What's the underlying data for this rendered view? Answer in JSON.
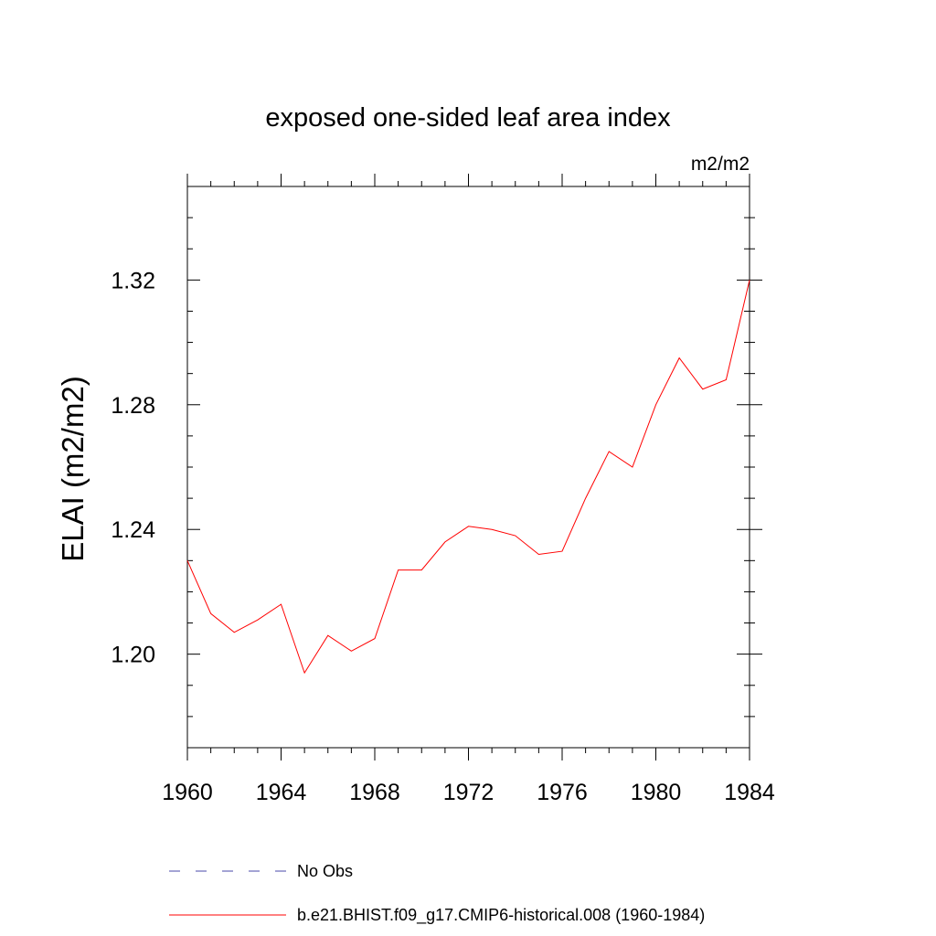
{
  "chart_data": {
    "type": "line",
    "title": "exposed one-sided leaf area index",
    "units_label": "m2/m2",
    "ylabel": "ELAI  (m2/m2)",
    "xlabel": "",
    "xlim": [
      1960,
      1984
    ],
    "ylim": [
      1.17,
      1.35
    ],
    "x_ticks": [
      1960,
      1964,
      1968,
      1972,
      1976,
      1980,
      1984
    ],
    "x_tick_labels": [
      "1960",
      "1964",
      "1968",
      "1972",
      "1976",
      "1980",
      "1984"
    ],
    "y_ticks": [
      1.2,
      1.24,
      1.28,
      1.32
    ],
    "y_tick_labels": [
      "1.20",
      "1.24",
      "1.28",
      "1.32"
    ],
    "grid": false,
    "legend_placement": "bottom",
    "series": [
      {
        "name": "b.e21.BHIST.f09_g17.CMIP6-historical.008 (1960-1984)",
        "color": "#ff0000",
        "style": "solid",
        "x": [
          1960,
          1961,
          1962,
          1963,
          1964,
          1965,
          1966,
          1967,
          1968,
          1969,
          1970,
          1971,
          1972,
          1973,
          1974,
          1975,
          1976,
          1977,
          1978,
          1979,
          1980,
          1981,
          1982,
          1983,
          1984
        ],
        "y": [
          1.23,
          1.213,
          1.207,
          1.211,
          1.216,
          1.194,
          1.206,
          1.201,
          1.205,
          1.227,
          1.227,
          1.236,
          1.241,
          1.24,
          1.238,
          1.232,
          1.233,
          1.25,
          1.265,
          1.26,
          1.28,
          1.295,
          1.285,
          1.288,
          1.32
        ]
      }
    ],
    "legend": [
      {
        "label": "No Obs",
        "color": "#4a4aa8",
        "style": "dashed"
      },
      {
        "label": "b.e21.BHIST.f09_g17.CMIP6-historical.008 (1960-1984)",
        "color": "#ff0000",
        "style": "solid"
      }
    ]
  }
}
